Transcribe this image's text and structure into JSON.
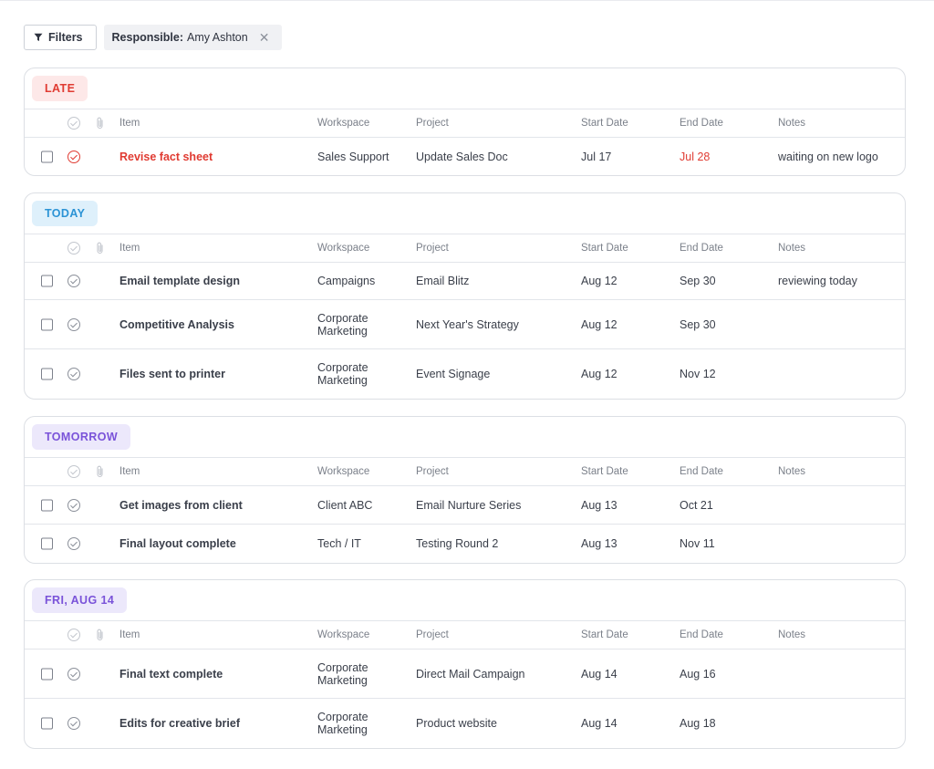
{
  "filters": {
    "filters_label": "Filters",
    "chip_key": "Responsible:",
    "chip_value": "Amy Ashton"
  },
  "columns": {
    "item": "Item",
    "workspace": "Workspace",
    "project": "Project",
    "start_date": "Start Date",
    "end_date": "End Date",
    "notes": "Notes"
  },
  "sections": [
    {
      "label": "LATE",
      "color": "#e03b32",
      "rows": [
        {
          "item": "Revise fact sheet",
          "workspace": "Sales Support",
          "project": "Update Sales Doc",
          "start": "Jul 17",
          "end": "Jul 28",
          "notes": "waiting on new logo"
        }
      ]
    },
    {
      "label": "TODAY",
      "color": "#2b93d5",
      "rows": [
        {
          "item": "Email template design",
          "workspace": "Campaigns",
          "project": "Email Blitz",
          "start": "Aug 12",
          "end": "Sep 30",
          "notes": "reviewing today"
        },
        {
          "item": "Competitive Analysis",
          "workspace": "Corporate Marketing",
          "project": "Next Year's Strategy",
          "start": "Aug 12",
          "end": "Sep 30",
          "notes": ""
        },
        {
          "item": "Files sent to printer",
          "workspace": "Corporate Marketing",
          "project": "Event Signage",
          "start": "Aug 12",
          "end": "Nov 12",
          "notes": ""
        }
      ]
    },
    {
      "label": "TOMORROW",
      "color": "#7a53d9",
      "rows": [
        {
          "item": "Get images from client",
          "workspace": "Client ABC",
          "project": "Email Nurture Series",
          "start": "Aug 13",
          "end": "Oct 21",
          "notes": ""
        },
        {
          "item": "Final layout complete",
          "workspace": "Tech / IT",
          "project": "Testing Round 2",
          "start": "Aug 13",
          "end": "Nov 11",
          "notes": ""
        }
      ]
    },
    {
      "label": "FRI, AUG 14",
      "color": "#7a53d9",
      "rows": [
        {
          "item": "Final text complete",
          "workspace": "Corporate Marketing",
          "project": "Direct Mail Campaign",
          "start": "Aug 14",
          "end": "Aug 16",
          "notes": ""
        },
        {
          "item": "Edits for creative brief",
          "workspace": "Corporate Marketing",
          "project": "Product website",
          "start": "Aug 14",
          "end": "Aug 18",
          "notes": ""
        }
      ]
    }
  ]
}
